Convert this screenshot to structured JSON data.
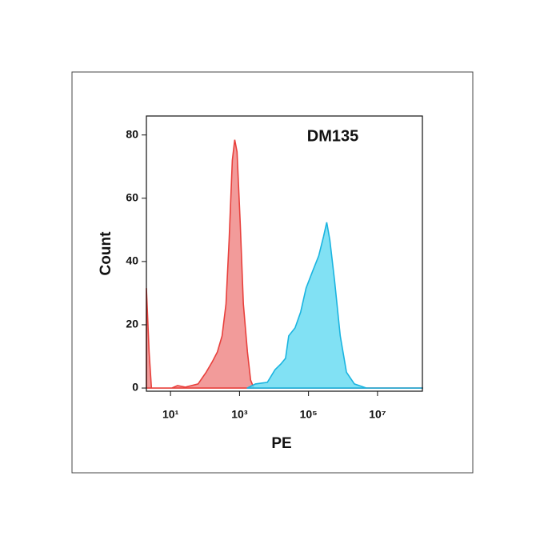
{
  "chart_data": {
    "type": "area",
    "title": "DM135",
    "x_label": "PE",
    "y_label": "Count",
    "xscale": "log",
    "xlim": [
      2,
      200000000
    ],
    "ylim": [
      -1,
      86
    ],
    "xticks": [
      {
        "value": 10,
        "label": "10¹"
      },
      {
        "value": 1000,
        "label": "10³"
      },
      {
        "value": 100000,
        "label": "10⁵"
      },
      {
        "value": 10000000,
        "label": "10⁷"
      }
    ],
    "yticks": [
      0,
      20,
      40,
      60,
      80
    ],
    "series": [
      {
        "color": "#e8403c",
        "fill": "#f08a88",
        "x": [
          2,
          2.4,
          2.8,
          11,
          16,
          27,
          63,
          108,
          165,
          228,
          313,
          405,
          500,
          620,
          725,
          850,
          1050,
          1290,
          1700,
          2100,
          2600,
          200000000
        ],
        "values": [
          31.6,
          11.4,
          0,
          0,
          0.8,
          0.3,
          1.3,
          5,
          8.4,
          11.4,
          16.5,
          26.6,
          46.8,
          72,
          78.5,
          74.7,
          52,
          26.6,
          11.4,
          2.5,
          0,
          0
        ]
      },
      {
        "color": "#1ab4e0",
        "fill": "#6bdcf2",
        "x": [
          1700,
          2900,
          6400,
          10700,
          15800,
          21600,
          26700,
          40700,
          59000,
          85000,
          129000,
          198000,
          274000,
          337000,
          415000,
          570000,
          830000,
          1260000,
          2140000,
          4700000,
          200000000
        ],
        "values": [
          0,
          1.3,
          1.8,
          5.8,
          7.6,
          9.4,
          16.5,
          19,
          24,
          31.6,
          36.7,
          41.8,
          48,
          52.4,
          46.8,
          34,
          16.5,
          5,
          1.3,
          0,
          0
        ]
      }
    ]
  }
}
